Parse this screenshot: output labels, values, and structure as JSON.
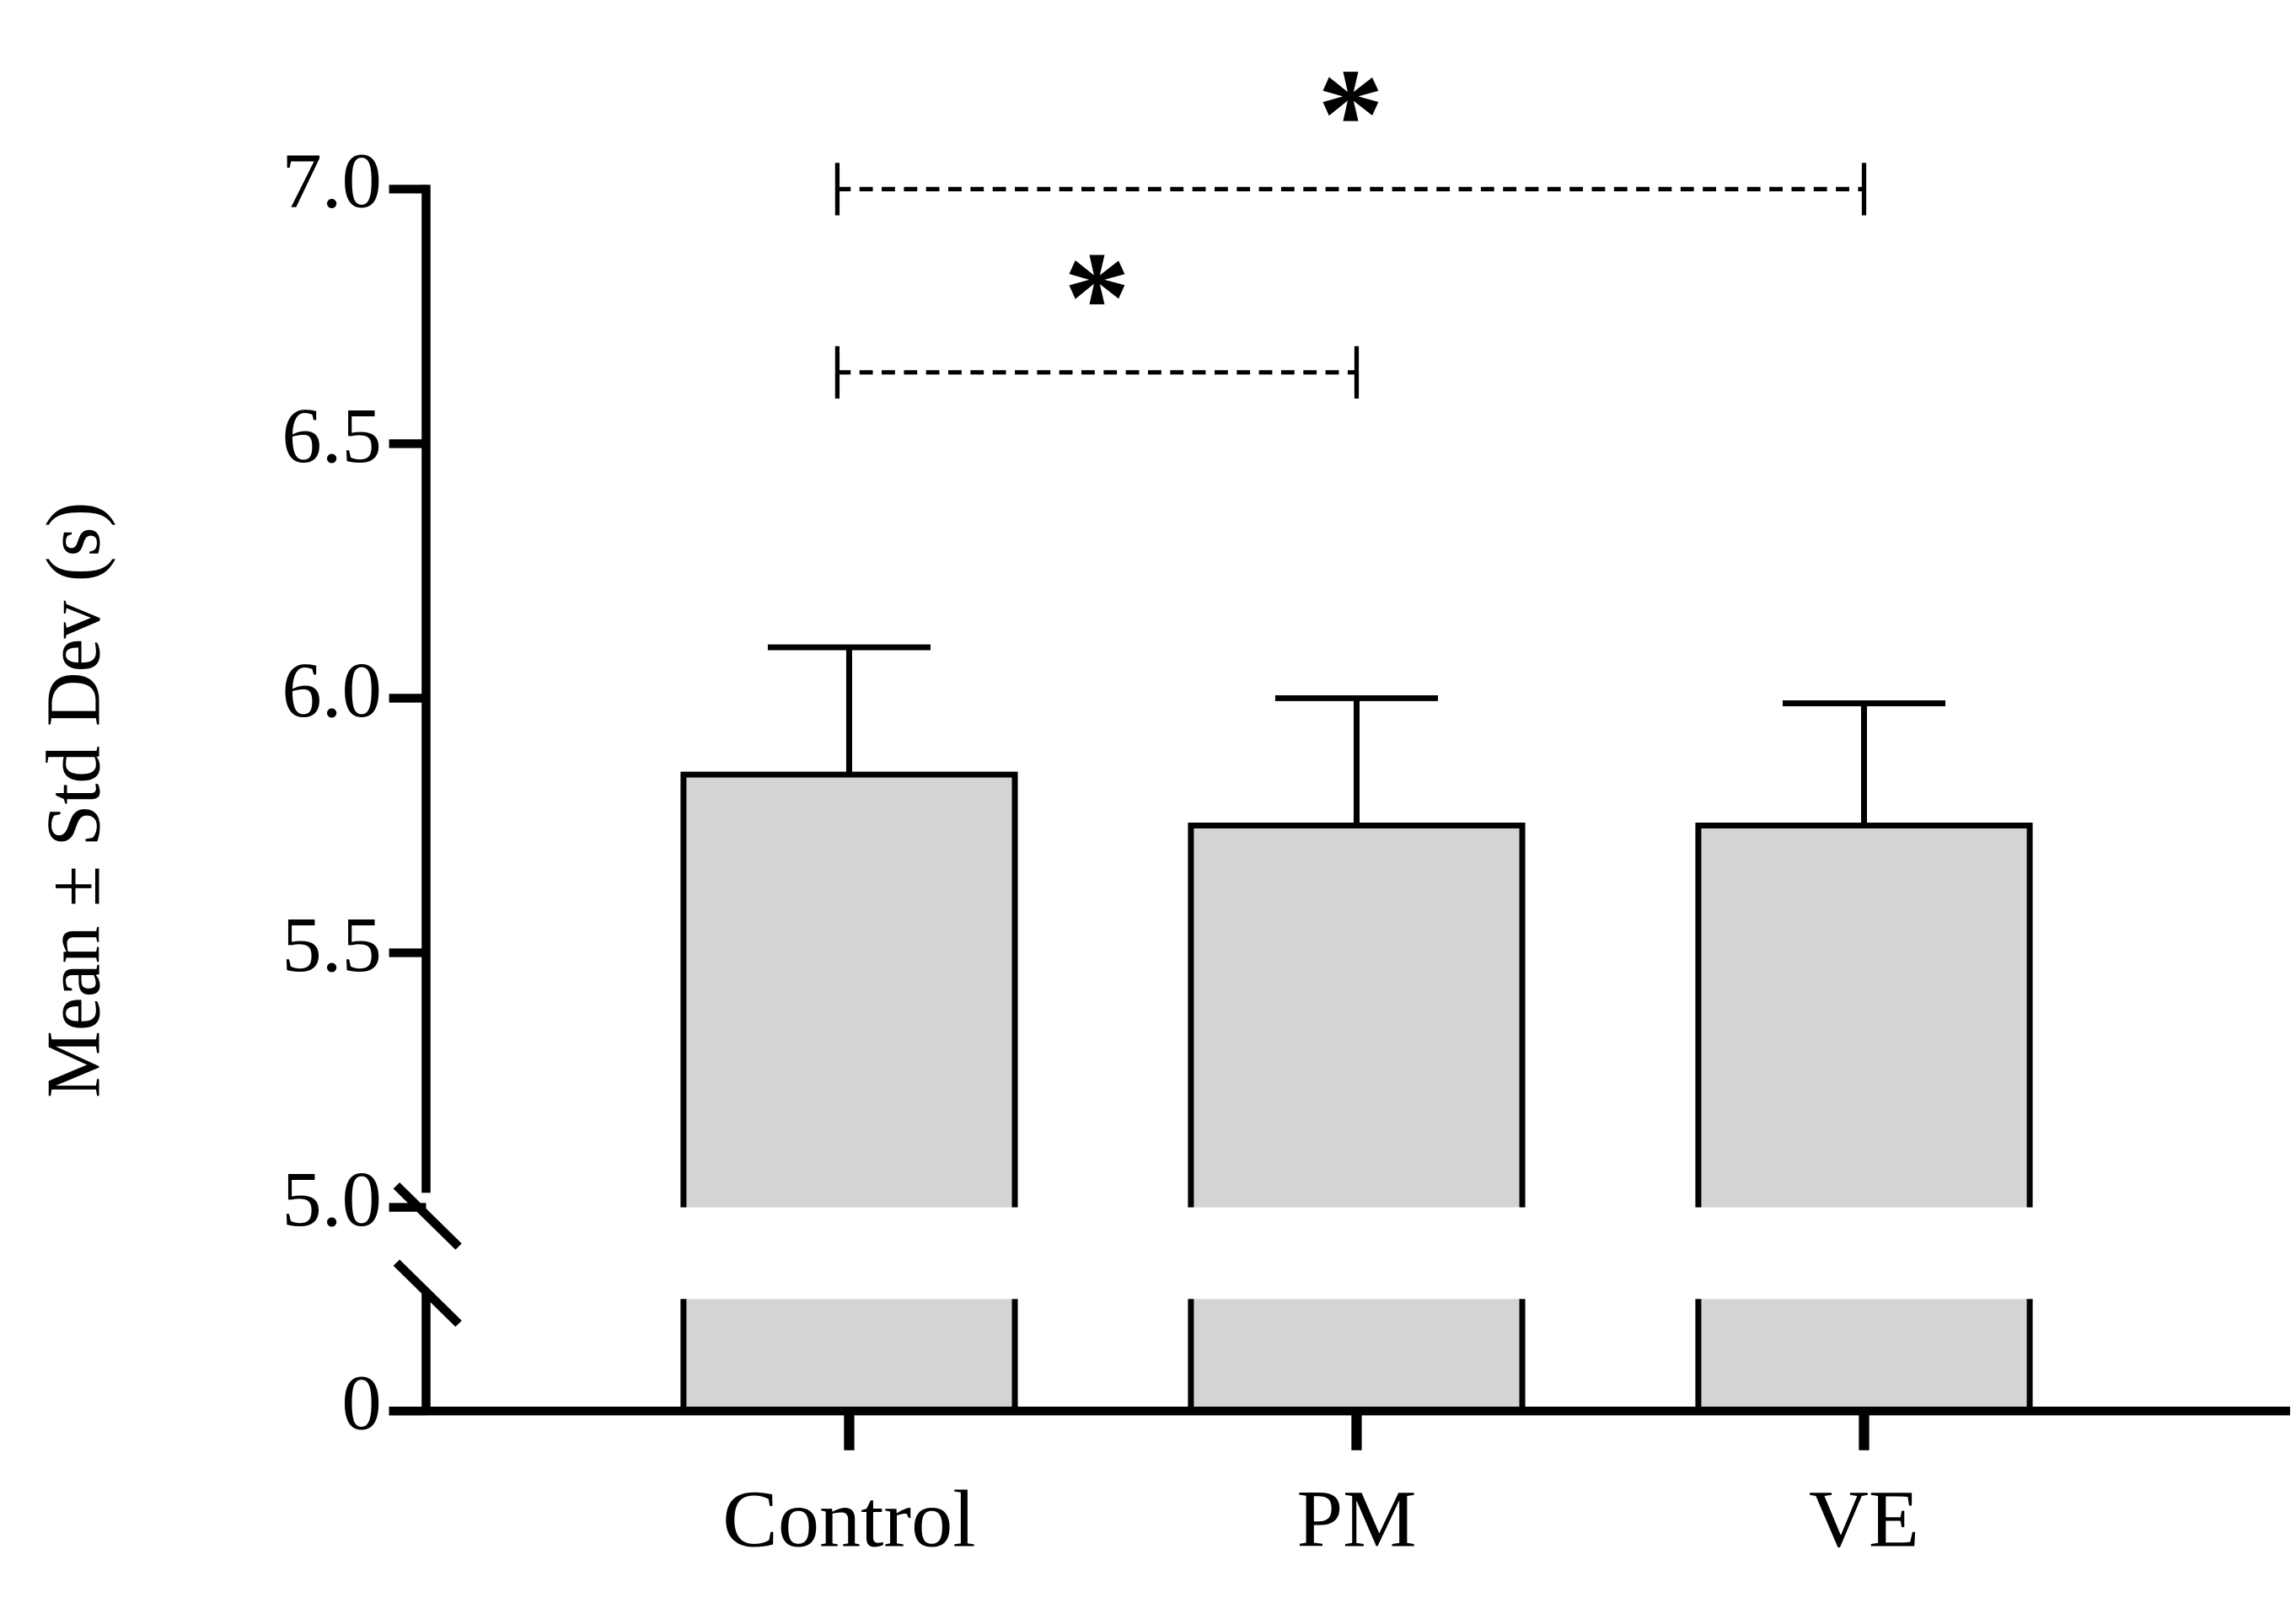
{
  "chart_data": {
    "type": "bar",
    "ylabel": "Mean ± Std Dev (s)",
    "categories": [
      "Control",
      "PM",
      "VE"
    ],
    "values": [
      5.85,
      5.75,
      5.75
    ],
    "errors": [
      0.25,
      0.25,
      0.24
    ],
    "color": "#d4d4d4",
    "ylim": [
      5,
      7
    ],
    "yticks": [
      0,
      {
        "value": 5,
        "label": "5.0"
      },
      5.5,
      {
        "value": 6,
        "label": "6.0"
      },
      6.5,
      {
        "value": 7,
        "label": "7.0"
      }
    ],
    "axis_break": true,
    "annotations": [
      {
        "text": "*",
        "between": [
          0,
          1
        ],
        "y": 6.64
      },
      {
        "text": "*",
        "between": [
          0,
          2
        ],
        "y": 7.0
      }
    ]
  }
}
